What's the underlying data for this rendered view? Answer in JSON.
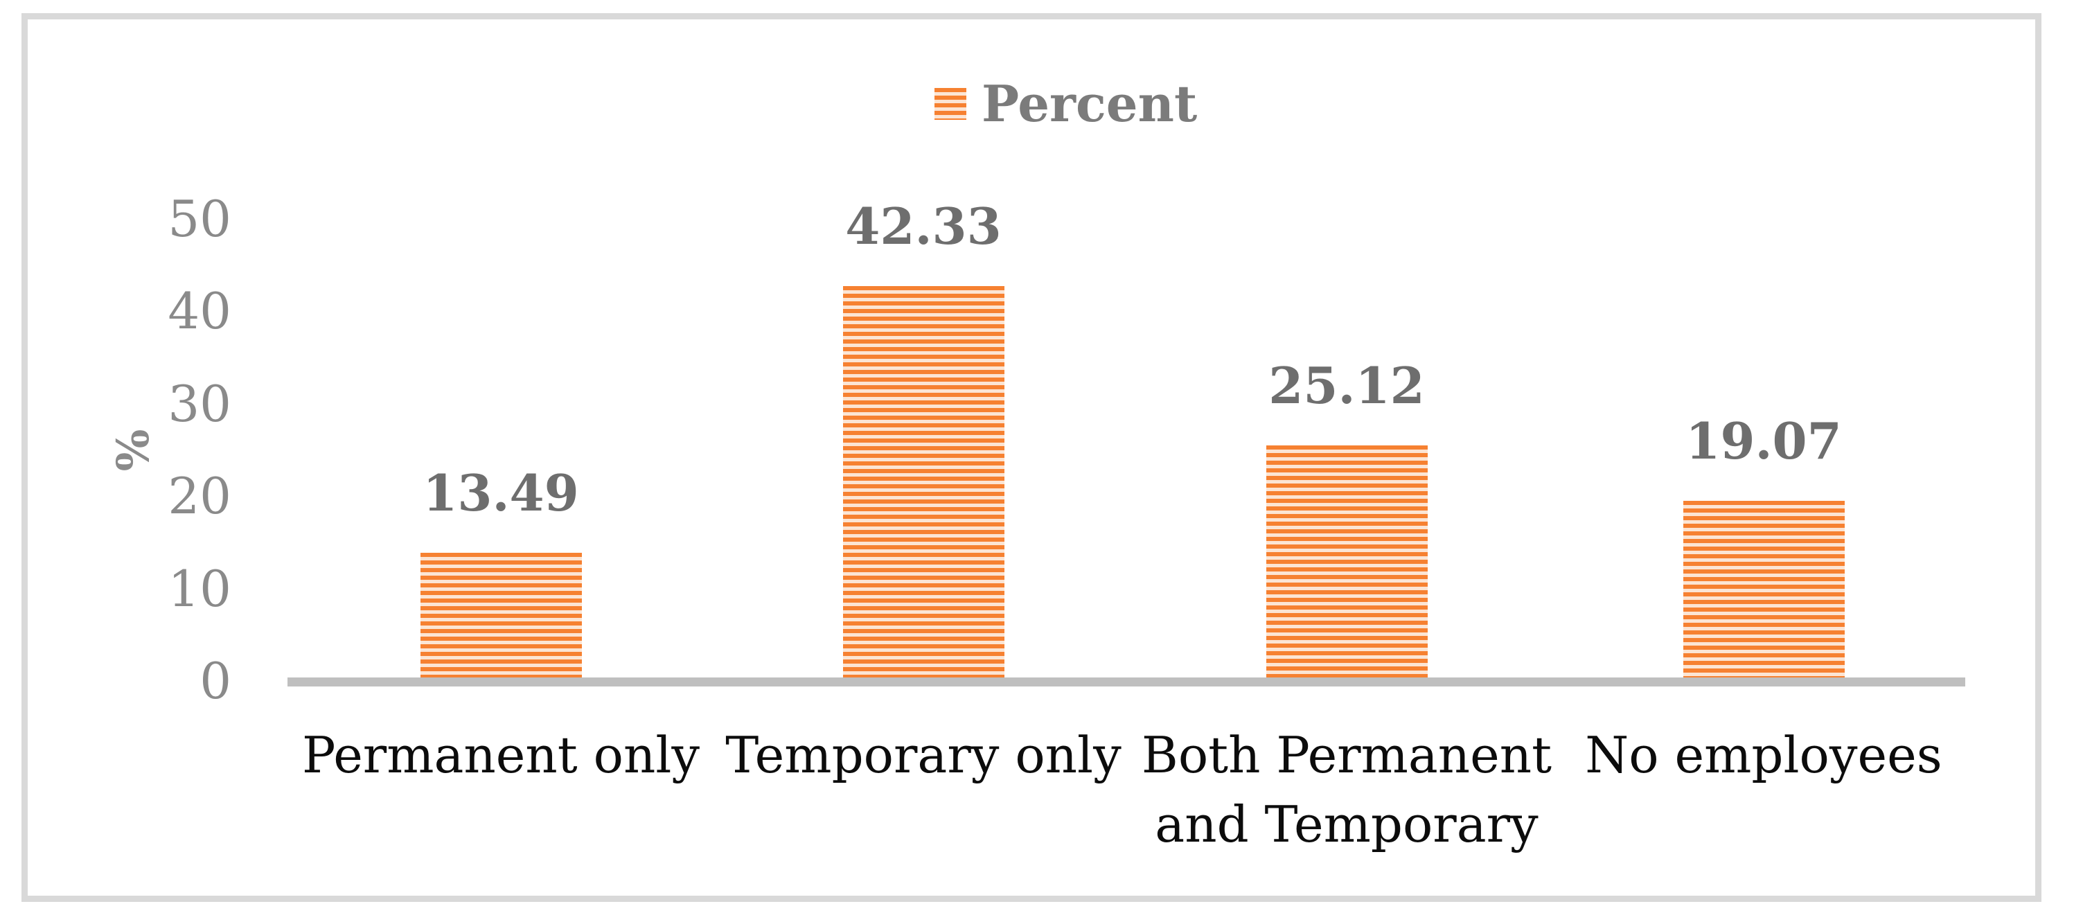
{
  "figure": {
    "background": "#FFFFFF",
    "frame_color": "#D9D9D9"
  },
  "chart_data": {
    "type": "bar",
    "title": "",
    "legend": {
      "label": "Percent",
      "position": "top-center",
      "swatch": "striped-orange-square"
    },
    "categories": [
      "Permanent only",
      "Temporary only",
      "Both Permanent and Temporary",
      "No employees"
    ],
    "values": [
      13.49,
      42.33,
      25.12,
      19.07
    ],
    "data_labels": [
      "13.49",
      "42.33",
      "25.12",
      "19.07"
    ],
    "xlabel": "",
    "ylabel": "%",
    "ylim": [
      0,
      50
    ],
    "yticks": [
      0,
      10,
      20,
      30,
      40,
      50
    ],
    "grid": false,
    "colors": {
      "bar_stripe_main": "#F68131",
      "bar_stripe_light": "#FCE5D4",
      "axis_line": "#BFBFBF",
      "tick_label": "#8A8A8A",
      "value_label": "#6E6E6E",
      "category_label": "#0C0C0C",
      "legend_text": "#7B7B7B",
      "ylabel_text": "#8A8A8A"
    }
  }
}
